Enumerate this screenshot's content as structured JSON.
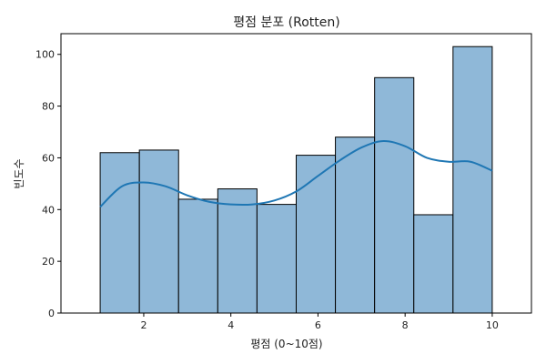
{
  "chart_data": {
    "type": "bar",
    "subtype": "histogram-with-kde",
    "title": "평점 분포 (Rotten)",
    "xlabel": "평점 (0~10점)",
    "ylabel": "빈도수",
    "xlim": [
      0.1,
      10.9
    ],
    "ylim": [
      0,
      108
    ],
    "xticks": [
      2,
      4,
      6,
      8,
      10
    ],
    "yticks": [
      0,
      20,
      40,
      60,
      80,
      100
    ],
    "grid": false,
    "colors": {
      "bar_fill": "#8fb8d8",
      "bar_edge": "#000000",
      "kde_line": "#1f77b4"
    },
    "bins": [
      {
        "start": 1.0,
        "end": 1.9,
        "value": 62
      },
      {
        "start": 1.9,
        "end": 2.8,
        "value": 63
      },
      {
        "start": 2.8,
        "end": 3.7,
        "value": 44
      },
      {
        "start": 3.7,
        "end": 4.6,
        "value": 48
      },
      {
        "start": 4.6,
        "end": 5.5,
        "value": 42
      },
      {
        "start": 5.5,
        "end": 6.4,
        "value": 61
      },
      {
        "start": 6.4,
        "end": 7.3,
        "value": 68
      },
      {
        "start": 7.3,
        "end": 8.2,
        "value": 91
      },
      {
        "start": 8.2,
        "end": 9.1,
        "value": 38
      },
      {
        "start": 9.1,
        "end": 10.0,
        "value": 103
      }
    ],
    "kde": {
      "x": [
        1.0,
        1.5,
        2.0,
        2.5,
        3.0,
        3.5,
        4.0,
        4.5,
        5.0,
        5.5,
        6.0,
        6.5,
        7.0,
        7.5,
        8.0,
        8.5,
        9.0,
        9.5,
        10.0
      ],
      "y": [
        41,
        49,
        50.5,
        49,
        45.5,
        43,
        42,
        42,
        43.5,
        47,
        53,
        59,
        64,
        66.5,
        64.5,
        60,
        58.5,
        58.5,
        55
      ]
    }
  }
}
